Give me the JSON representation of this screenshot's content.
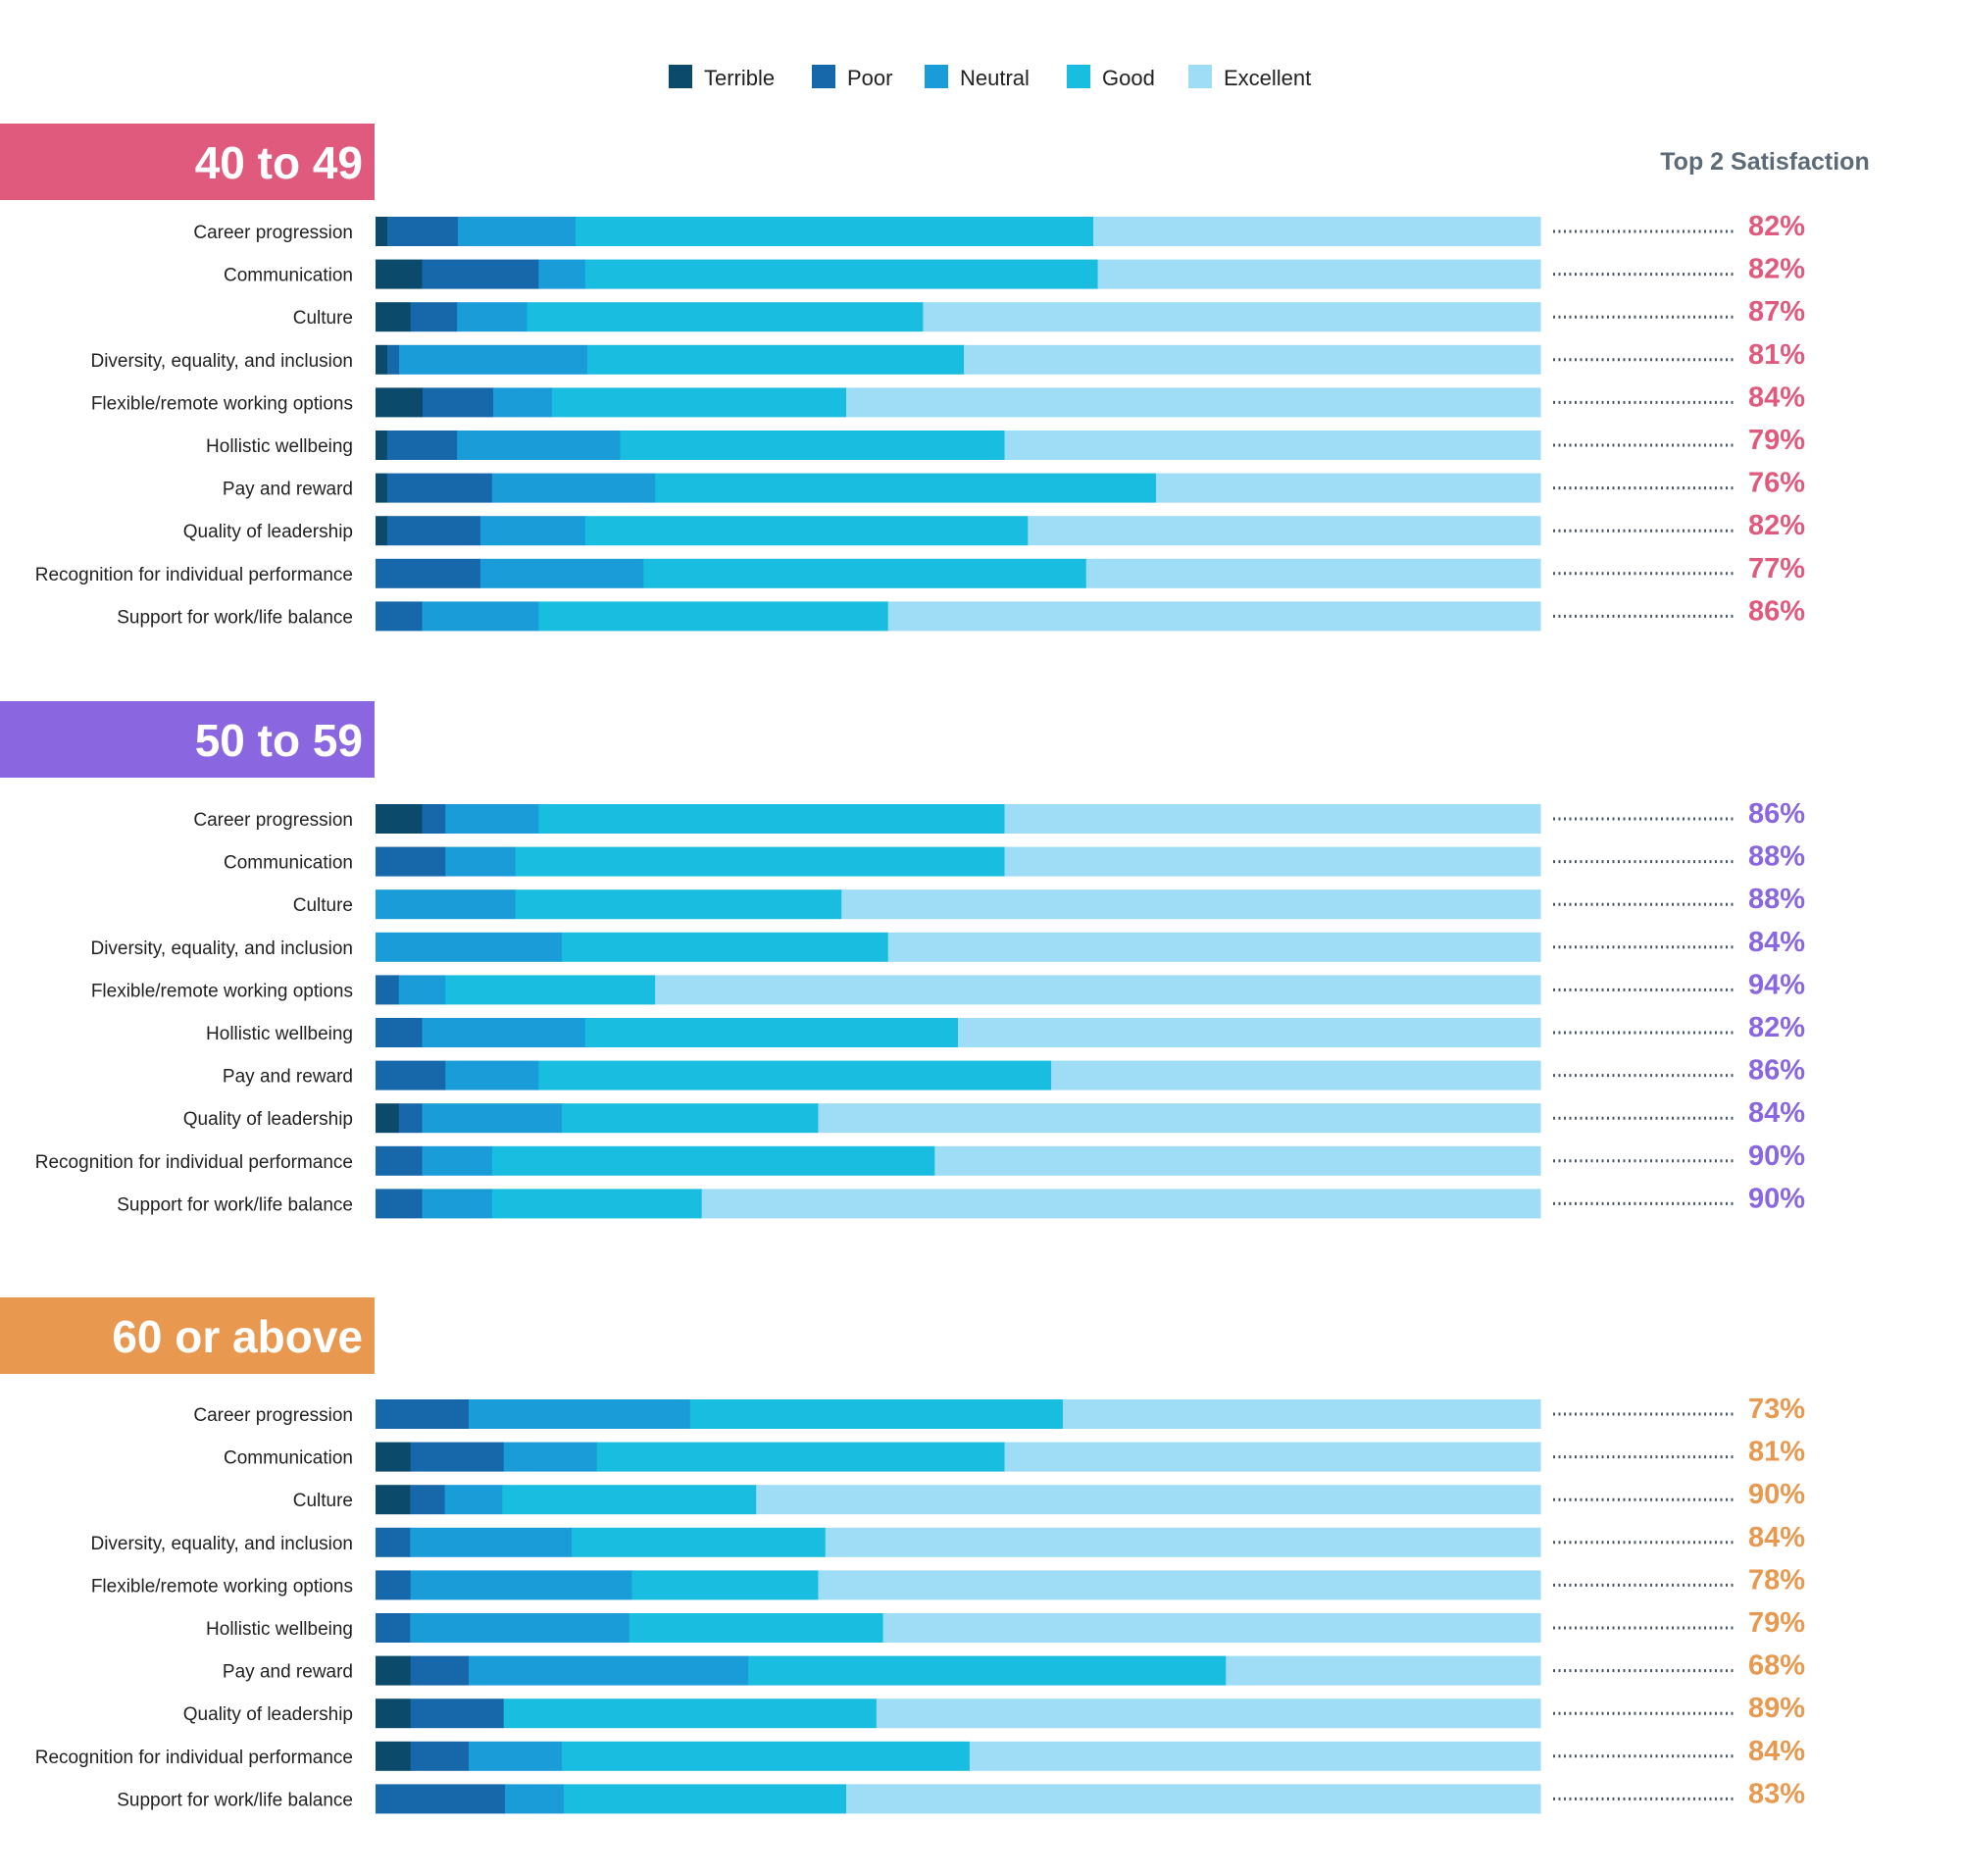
{
  "legend": [
    {
      "label": "Terrible",
      "color": "#0b4a6b"
    },
    {
      "label": "Poor",
      "color": "#1668aa"
    },
    {
      "label": "Neutral",
      "color": "#1a9cd8"
    },
    {
      "label": "Good",
      "color": "#18bde0"
    },
    {
      "label": "Excellent",
      "color": "#9fdcf5"
    }
  ],
  "top2_header": "Top 2 Satisfaction",
  "chart_data": [
    {
      "type": "bar",
      "orientation": "horizontal",
      "stacked": true,
      "title": "40 to 49",
      "title_color": "#e05a7e",
      "categories": [
        "Career progression",
        "Communication",
        "Culture",
        "Diversity, equality, and inclusion",
        "Flexible/remote working options",
        "Hollistic wellbeing",
        "Pay and reward",
        "Quality of leadership",
        "Recognition for individual performance",
        "Support for work/life balance"
      ],
      "series": [
        {
          "name": "Terrible",
          "values": [
            1,
            4,
            3,
            1,
            4,
            1,
            1,
            1,
            0,
            0
          ]
        },
        {
          "name": "Poor",
          "values": [
            6,
            10,
            4,
            1,
            6,
            6,
            9,
            8,
            9,
            4
          ]
        },
        {
          "name": "Neutral",
          "values": [
            10,
            4,
            6,
            16,
            5,
            14,
            14,
            9,
            14,
            10
          ]
        },
        {
          "name": "Good",
          "values": [
            44,
            44,
            34,
            32,
            25,
            33,
            43,
            38,
            38,
            30
          ]
        },
        {
          "name": "Excellent",
          "values": [
            38,
            38,
            53,
            49,
            59,
            46,
            33,
            44,
            39,
            56
          ]
        }
      ],
      "top2": [
        "82%",
        "82%",
        "87%",
        "81%",
        "84%",
        "79%",
        "76%",
        "82%",
        "77%",
        "86%"
      ]
    },
    {
      "type": "bar",
      "orientation": "horizontal",
      "stacked": true,
      "title": "50 to 59",
      "title_color": "#8a67e0",
      "categories": [
        "Career progression",
        "Communication",
        "Culture",
        "Diversity, equality, and inclusion",
        "Flexible/remote working options",
        "Hollistic wellbeing",
        "Pay and reward",
        "Quality of leadership",
        "Recognition for individual performance",
        "Support for work/life balance"
      ],
      "series": [
        {
          "name": "Terrible",
          "values": [
            4,
            0,
            0,
            0,
            0,
            0,
            0,
            2,
            0,
            0
          ]
        },
        {
          "name": "Poor",
          "values": [
            2,
            6,
            0,
            0,
            2,
            4,
            6,
            2,
            4,
            4
          ]
        },
        {
          "name": "Neutral",
          "values": [
            8,
            6,
            12,
            16,
            4,
            14,
            8,
            12,
            6,
            6
          ]
        },
        {
          "name": "Good",
          "values": [
            40,
            42,
            28,
            28,
            18,
            32,
            44,
            22,
            38,
            18
          ]
        },
        {
          "name": "Excellent",
          "values": [
            46,
            46,
            60,
            56,
            76,
            50,
            42,
            62,
            52,
            72
          ]
        }
      ],
      "top2": [
        "86%",
        "88%",
        "88%",
        "84%",
        "94%",
        "82%",
        "86%",
        "84%",
        "90%",
        "90%"
      ]
    },
    {
      "type": "bar",
      "orientation": "horizontal",
      "stacked": true,
      "title": "60 or above",
      "title_color": "#e9994f",
      "categories": [
        "Career progression",
        "Communication",
        "Culture",
        "Diversity, equality, and inclusion",
        "Flexible/remote working options",
        "Hollistic wellbeing",
        "Pay and reward",
        "Quality of leadership",
        "Recognition for individual performance",
        "Support for work/life balance"
      ],
      "series": [
        {
          "name": "Terrible",
          "values": [
            0,
            3,
            3,
            0,
            0,
            0,
            3,
            3,
            3,
            0
          ]
        },
        {
          "name": "Poor",
          "values": [
            8,
            8,
            3,
            3,
            3,
            3,
            5,
            8,
            5,
            11
          ]
        },
        {
          "name": "Neutral",
          "values": [
            19,
            8,
            5,
            14,
            19,
            19,
            24,
            0,
            8,
            5
          ]
        },
        {
          "name": "Good",
          "values": [
            32,
            35,
            22,
            22,
            16,
            22,
            41,
            32,
            35,
            24
          ]
        },
        {
          "name": "Excellent",
          "values": [
            41,
            46,
            68,
            62,
            62,
            57,
            27,
            57,
            49,
            59
          ]
        }
      ],
      "top2": [
        "73%",
        "81%",
        "90%",
        "84%",
        "78%",
        "79%",
        "68%",
        "89%",
        "84%",
        "83%"
      ]
    }
  ]
}
